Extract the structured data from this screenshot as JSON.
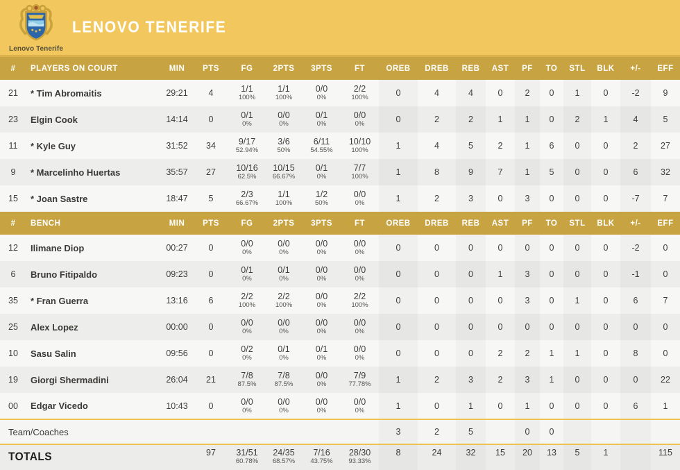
{
  "team": {
    "name": "LENOVO TENERIFE",
    "logo_caption": "Lenovo Tenerife"
  },
  "colors": {
    "banner": "#f2c75e",
    "banner_border": "#dcb14c",
    "header_row": "#c7a342",
    "divider": "#eec24d",
    "row_odd": "#f7f7f6",
    "row_even": "#ededec",
    "team_row": "#f5f5f4",
    "totals_row": "#ececeb",
    "header_text": "#ffffff",
    "crest_blue": "#2b66ab",
    "crest_gold": "#c9a23c"
  },
  "columns": {
    "num": "#",
    "on_court": "PLAYERS ON COURT",
    "bench": "BENCH",
    "min": "MIN",
    "pts": "PTS",
    "fg": "FG",
    "p2": "2PTS",
    "p3": "3PTS",
    "ft": "FT",
    "oreb": "OREB",
    "dreb": "DREB",
    "reb": "REB",
    "ast": "AST",
    "pf": "PF",
    "to": "TO",
    "stl": "STL",
    "blk": "BLK",
    "pm": "+/-",
    "eff": "EFF"
  },
  "on_court": [
    {
      "num": "21",
      "name": "* Tim Abromaitis",
      "min": "29:21",
      "pts": "4",
      "fg": "1/1",
      "fg_pct": "100%",
      "p2": "1/1",
      "p2_pct": "100%",
      "p3": "0/0",
      "p3_pct": "0%",
      "ft": "2/2",
      "ft_pct": "100%",
      "oreb": "0",
      "dreb": "4",
      "reb": "4",
      "ast": "0",
      "pf": "2",
      "to": "0",
      "stl": "1",
      "blk": "0",
      "pm": "-2",
      "eff": "9"
    },
    {
      "num": "23",
      "name": "Elgin Cook",
      "min": "14:14",
      "pts": "0",
      "fg": "0/1",
      "fg_pct": "0%",
      "p2": "0/0",
      "p2_pct": "0%",
      "p3": "0/1",
      "p3_pct": "0%",
      "ft": "0/0",
      "ft_pct": "0%",
      "oreb": "0",
      "dreb": "2",
      "reb": "2",
      "ast": "1",
      "pf": "1",
      "to": "0",
      "stl": "2",
      "blk": "1",
      "pm": "4",
      "eff": "5"
    },
    {
      "num": "11",
      "name": "* Kyle Guy",
      "min": "31:52",
      "pts": "34",
      "fg": "9/17",
      "fg_pct": "52.94%",
      "p2": "3/6",
      "p2_pct": "50%",
      "p3": "6/11",
      "p3_pct": "54.55%",
      "ft": "10/10",
      "ft_pct": "100%",
      "oreb": "1",
      "dreb": "4",
      "reb": "5",
      "ast": "2",
      "pf": "1",
      "to": "6",
      "stl": "0",
      "blk": "0",
      "pm": "2",
      "eff": "27"
    },
    {
      "num": "9",
      "name": "* Marcelinho Huertas",
      "min": "35:57",
      "pts": "27",
      "fg": "10/16",
      "fg_pct": "62.5%",
      "p2": "10/15",
      "p2_pct": "66.67%",
      "p3": "0/1",
      "p3_pct": "0%",
      "ft": "7/7",
      "ft_pct": "100%",
      "oreb": "1",
      "dreb": "8",
      "reb": "9",
      "ast": "7",
      "pf": "1",
      "to": "5",
      "stl": "0",
      "blk": "0",
      "pm": "6",
      "eff": "32"
    },
    {
      "num": "15",
      "name": "* Joan Sastre",
      "min": "18:47",
      "pts": "5",
      "fg": "2/3",
      "fg_pct": "66.67%",
      "p2": "1/1",
      "p2_pct": "100%",
      "p3": "1/2",
      "p3_pct": "50%",
      "ft": "0/0",
      "ft_pct": "0%",
      "oreb": "1",
      "dreb": "2",
      "reb": "3",
      "ast": "0",
      "pf": "3",
      "to": "0",
      "stl": "0",
      "blk": "0",
      "pm": "-7",
      "eff": "7"
    }
  ],
  "bench": [
    {
      "num": "12",
      "name": "Ilimane Diop",
      "min": "00:27",
      "pts": "0",
      "fg": "0/0",
      "fg_pct": "0%",
      "p2": "0/0",
      "p2_pct": "0%",
      "p3": "0/0",
      "p3_pct": "0%",
      "ft": "0/0",
      "ft_pct": "0%",
      "oreb": "0",
      "dreb": "0",
      "reb": "0",
      "ast": "0",
      "pf": "0",
      "to": "0",
      "stl": "0",
      "blk": "0",
      "pm": "-2",
      "eff": "0"
    },
    {
      "num": "6",
      "name": "Bruno Fitipaldo",
      "min": "09:23",
      "pts": "0",
      "fg": "0/1",
      "fg_pct": "0%",
      "p2": "0/1",
      "p2_pct": "0%",
      "p3": "0/0",
      "p3_pct": "0%",
      "ft": "0/0",
      "ft_pct": "0%",
      "oreb": "0",
      "dreb": "0",
      "reb": "0",
      "ast": "1",
      "pf": "3",
      "to": "0",
      "stl": "0",
      "blk": "0",
      "pm": "-1",
      "eff": "0"
    },
    {
      "num": "35",
      "name": "* Fran Guerra",
      "min": "13:16",
      "pts": "6",
      "fg": "2/2",
      "fg_pct": "100%",
      "p2": "2/2",
      "p2_pct": "100%",
      "p3": "0/0",
      "p3_pct": "0%",
      "ft": "2/2",
      "ft_pct": "100%",
      "oreb": "0",
      "dreb": "0",
      "reb": "0",
      "ast": "0",
      "pf": "3",
      "to": "0",
      "stl": "1",
      "blk": "0",
      "pm": "6",
      "eff": "7"
    },
    {
      "num": "25",
      "name": "Alex Lopez",
      "min": "00:00",
      "pts": "0",
      "fg": "0/0",
      "fg_pct": "0%",
      "p2": "0/0",
      "p2_pct": "0%",
      "p3": "0/0",
      "p3_pct": "0%",
      "ft": "0/0",
      "ft_pct": "0%",
      "oreb": "0",
      "dreb": "0",
      "reb": "0",
      "ast": "0",
      "pf": "0",
      "to": "0",
      "stl": "0",
      "blk": "0",
      "pm": "0",
      "eff": "0"
    },
    {
      "num": "10",
      "name": "Sasu Salin",
      "min": "09:56",
      "pts": "0",
      "fg": "0/2",
      "fg_pct": "0%",
      "p2": "0/1",
      "p2_pct": "0%",
      "p3": "0/1",
      "p3_pct": "0%",
      "ft": "0/0",
      "ft_pct": "0%",
      "oreb": "0",
      "dreb": "0",
      "reb": "0",
      "ast": "2",
      "pf": "2",
      "to": "1",
      "stl": "1",
      "blk": "0",
      "pm": "8",
      "eff": "0"
    },
    {
      "num": "19",
      "name": "Giorgi Shermadini",
      "min": "26:04",
      "pts": "21",
      "fg": "7/8",
      "fg_pct": "87.5%",
      "p2": "7/8",
      "p2_pct": "87.5%",
      "p3": "0/0",
      "p3_pct": "0%",
      "ft": "7/9",
      "ft_pct": "77.78%",
      "oreb": "1",
      "dreb": "2",
      "reb": "3",
      "ast": "2",
      "pf": "3",
      "to": "1",
      "stl": "0",
      "blk": "0",
      "pm": "0",
      "eff": "22"
    },
    {
      "num": "00",
      "name": "Edgar Vicedo",
      "min": "10:43",
      "pts": "0",
      "fg": "0/0",
      "fg_pct": "0%",
      "p2": "0/0",
      "p2_pct": "0%",
      "p3": "0/0",
      "p3_pct": "0%",
      "ft": "0/0",
      "ft_pct": "0%",
      "oreb": "1",
      "dreb": "0",
      "reb": "1",
      "ast": "0",
      "pf": "1",
      "to": "0",
      "stl": "0",
      "blk": "0",
      "pm": "6",
      "eff": "1"
    }
  ],
  "team_coaches": {
    "label": "Team/Coaches",
    "min": "",
    "pts": "",
    "fg": "",
    "fg_pct": "",
    "p2": "",
    "p2_pct": "",
    "p3": "",
    "p3_pct": "",
    "ft": "",
    "ft_pct": "",
    "oreb": "3",
    "dreb": "2",
    "reb": "5",
    "ast": "",
    "pf": "0",
    "to": "0",
    "stl": "",
    "blk": "",
    "pm": "",
    "eff": ""
  },
  "totals": {
    "label": "TOTALS",
    "min": "",
    "pts": "97",
    "fg": "31/51",
    "fg_pct": "60.78%",
    "p2": "24/35",
    "p2_pct": "68.57%",
    "p3": "7/16",
    "p3_pct": "43.75%",
    "ft": "28/30",
    "ft_pct": "93.33%",
    "oreb": "8",
    "dreb": "24",
    "reb": "32",
    "ast": "15",
    "pf": "20",
    "to": "13",
    "stl": "5",
    "blk": "1",
    "pm": "",
    "eff": "115"
  }
}
